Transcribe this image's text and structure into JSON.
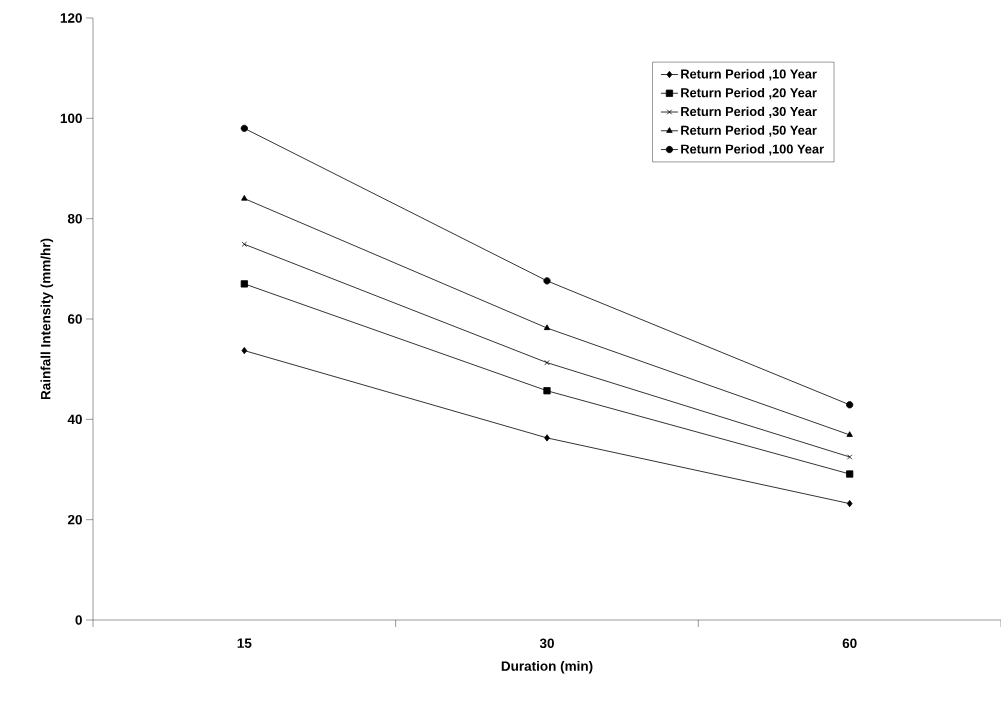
{
  "chart_data": {
    "type": "line",
    "xlabel": "Duration (min)",
    "ylabel": "Rainfall Intensity (mm/hr)",
    "categories": [
      "15",
      "30",
      "60"
    ],
    "ylim": [
      0,
      120
    ],
    "yticks": [
      0,
      20,
      40,
      60,
      80,
      100,
      120
    ],
    "grid": false,
    "legend": "top right",
    "line_style": "solid",
    "series": [
      {
        "name": "Return Period  ,10 Year",
        "color": "#000000",
        "marker": "diamond",
        "values": [
          53.7,
          36.3,
          23.2
        ]
      },
      {
        "name": "Return Period  ,20 Year",
        "color": "#000000",
        "marker": "square",
        "values": [
          67.0,
          45.7,
          29.1
        ]
      },
      {
        "name": "Return Period  ,30 Year",
        "color": "#000000",
        "marker": "cross",
        "values": [
          74.9,
          51.3,
          32.5
        ]
      },
      {
        "name": "Return Period ,50 Year",
        "color": "#000000",
        "marker": "triangle",
        "values": [
          84.0,
          58.2,
          36.9
        ]
      },
      {
        "name": "Return Period ,100 Year",
        "color": "#000000",
        "marker": "circle",
        "values": [
          98.0,
          67.6,
          42.9
        ]
      }
    ]
  }
}
